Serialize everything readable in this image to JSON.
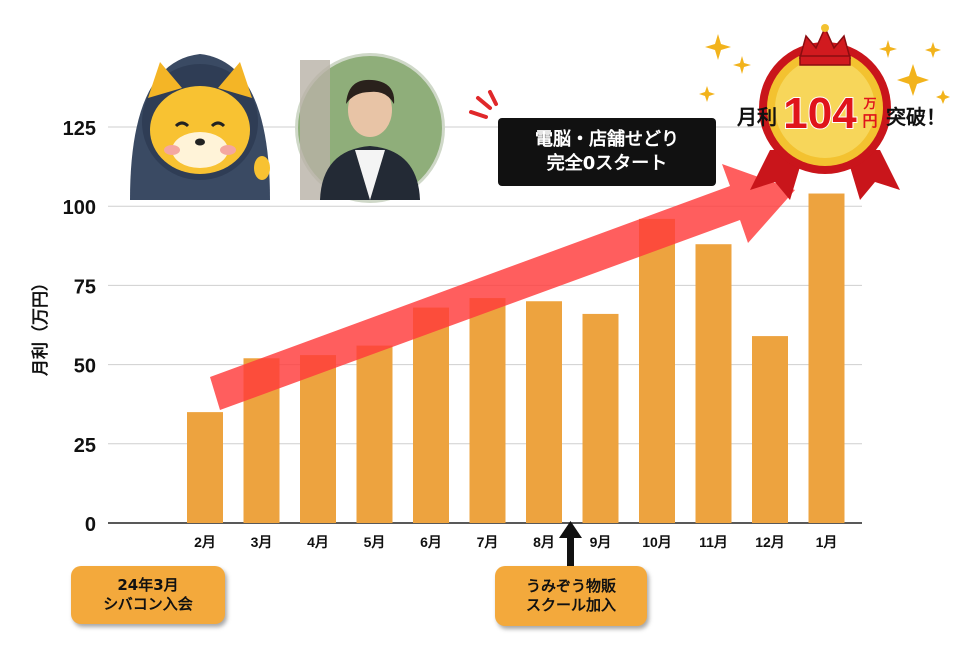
{
  "chart_data": {
    "type": "bar",
    "categories": [
      "2月",
      "3月",
      "4月",
      "5月",
      "6月",
      "7月",
      "8月",
      "9月",
      "10月",
      "11月",
      "12月",
      "1月"
    ],
    "values": [
      35,
      52,
      53,
      56,
      68,
      71,
      70,
      66,
      96,
      88,
      59,
      104
    ],
    "ylabel": "月利（万円）",
    "xlabel": "",
    "ylim": [
      0,
      135
    ],
    "yticks": [
      0,
      25,
      50,
      75,
      100,
      125
    ],
    "grid": true,
    "bar_color": "#eda33f",
    "arrow_color": "#ff3b3b"
  },
  "headline": {
    "line1": "電脳・店舗せどり",
    "line2": "完全0スタート"
  },
  "badge": {
    "prefix": "月利",
    "number": "104",
    "unit_top": "万",
    "unit_bottom": "円",
    "suffix": "突破！"
  },
  "notes": [
    {
      "line1": "24年3月",
      "line2": "シバコン入会"
    },
    {
      "line1": "うみぞう物販",
      "line2": "スクール加入"
    }
  ],
  "icons": {
    "character": "shiba-dog-hoodie-icon",
    "photo": "person-photo-icon",
    "crown": "crown-icon",
    "medal": "gold-medal-icon"
  }
}
